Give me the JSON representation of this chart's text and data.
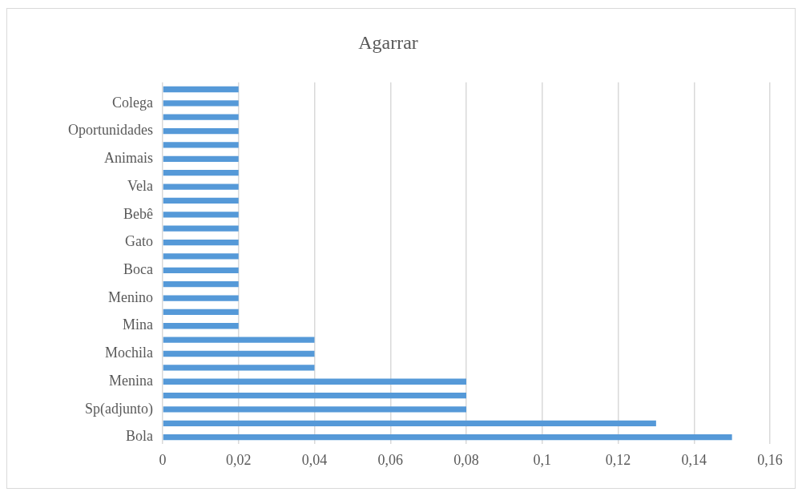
{
  "chart_data": {
    "type": "bar",
    "orientation": "horizontal",
    "title": "Agarrar",
    "categories": [
      null,
      "Colega",
      null,
      "Oportunidades",
      null,
      "Animais",
      null,
      "Vela",
      null,
      "Bebê",
      null,
      "Gato",
      null,
      "Boca",
      null,
      "Menino",
      null,
      "Mina",
      null,
      "Mochila",
      null,
      "Menina",
      null,
      "Sp(adjunto)",
      null,
      "Bola"
    ],
    "values": [
      0.02,
      0.02,
      0.02,
      0.02,
      0.02,
      0.02,
      0.02,
      0.02,
      0.02,
      0.02,
      0.02,
      0.02,
      0.02,
      0.02,
      0.02,
      0.02,
      0.02,
      0.02,
      0.04,
      0.04,
      0.04,
      0.08,
      0.08,
      0.08,
      0.13,
      0.15
    ],
    "color": "#5599d8",
    "xlim": [
      0,
      0.16
    ],
    "xticks": [
      0,
      {
        "value": 0.02,
        "label": "0,02"
      },
      {
        "value": 0.04,
        "label": "0,04"
      },
      {
        "value": 0.06,
        "label": "0,06"
      },
      {
        "value": 0.08,
        "label": "0,08"
      },
      {
        "value": 0.1,
        "label": "0,1"
      },
      {
        "value": 0.12,
        "label": "0,12"
      },
      {
        "value": 0.14,
        "label": "0,14"
      },
      {
        "value": 0.16,
        "label": "0,16"
      }
    ],
    "grid": "x",
    "legend": false
  }
}
